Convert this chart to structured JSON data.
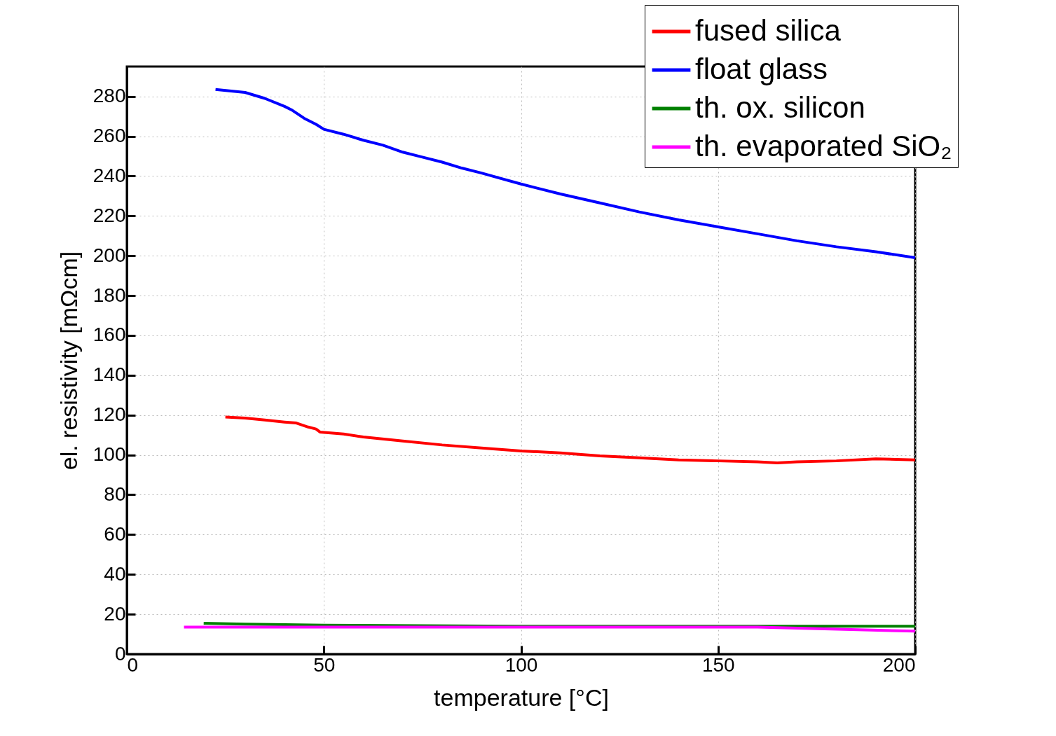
{
  "chart_data": {
    "type": "line",
    "xlabel": "temperature [°C]",
    "ylabel": "el. resistivity [mΩcm]",
    "xlim": [
      0,
      200
    ],
    "xticks": [
      0,
      50,
      100,
      150,
      200
    ],
    "ylim": [
      0,
      295
    ],
    "yticks": [
      0,
      20,
      40,
      60,
      80,
      100,
      120,
      140,
      160,
      180,
      200,
      220,
      240,
      260,
      280
    ],
    "grid": true,
    "legend": "top right",
    "line_style": "solid",
    "marker": "none",
    "series": [
      {
        "name": "fused silica",
        "color": "#ff0000",
        "x": [
          25,
          30,
          35,
          40,
          43,
          46,
          48,
          49,
          55,
          60,
          70,
          80,
          90,
          100,
          110,
          120,
          130,
          140,
          150,
          160,
          165,
          170,
          180,
          190,
          200
        ],
        "values": [
          119,
          118.5,
          117.5,
          116.5,
          116,
          114,
          113,
          111.5,
          110.5,
          109,
          107,
          105,
          103.5,
          102,
          101,
          99.5,
          98.5,
          97.5,
          97,
          96.5,
          96,
          96.5,
          97,
          98,
          97.5
        ]
      },
      {
        "name": "float glass",
        "color": "#0000ff",
        "x": [
          22.5,
          30,
          35,
          40,
          42,
          45,
          48,
          50,
          55,
          60,
          65,
          70,
          75,
          80,
          85,
          90,
          100,
          110,
          120,
          130,
          140,
          150,
          160,
          170,
          180,
          190,
          200
        ],
        "values": [
          283.5,
          282,
          279,
          275,
          273,
          269,
          266,
          263.5,
          261,
          258,
          255.5,
          252,
          249.5,
          247,
          244,
          241.5,
          236,
          231,
          226.5,
          222,
          218,
          214.5,
          211,
          207.5,
          204.5,
          202,
          199
        ]
      },
      {
        "name": "th. ox. silicon",
        "color": "#008000",
        "x": [
          19.5,
          30,
          50,
          100,
          150,
          200
        ],
        "values": [
          15.5,
          15,
          14.5,
          14,
          14,
          14
        ]
      },
      {
        "name": "th. evaporated SiO₂",
        "color": "#ff00ff",
        "x": [
          14.5,
          50,
          100,
          160,
          200
        ],
        "values": [
          13.5,
          13.5,
          13.5,
          13.5,
          11.5
        ]
      }
    ]
  }
}
